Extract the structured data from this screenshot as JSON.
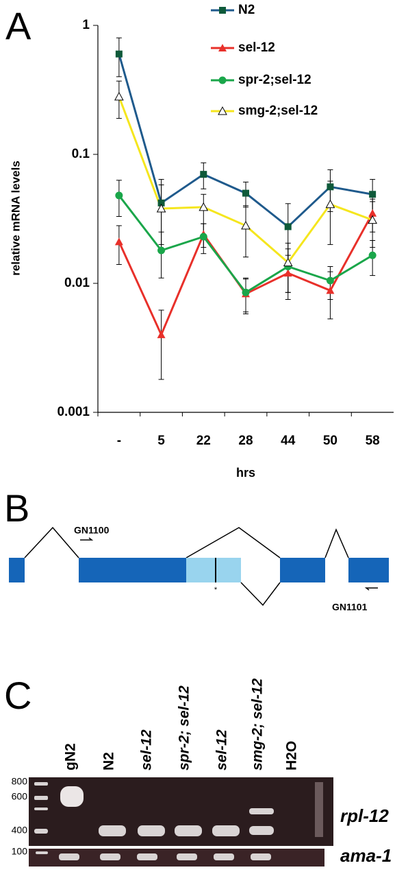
{
  "panel_a_label": "A",
  "chart_data": {
    "type": "line",
    "y_label": "relative mRNA levels",
    "x_label": "hrs",
    "categories": [
      "-",
      "5",
      "22",
      "28",
      "44",
      "50",
      "58"
    ],
    "log_scale": true,
    "ylim": [
      0.001,
      1
    ],
    "yticks": [
      1,
      0.1,
      0.01,
      0.001
    ],
    "series": [
      {
        "name": "N2",
        "color": "#1f5a8c",
        "marker": "square",
        "marker_color": "#0f5a3a",
        "values": [
          0.6,
          0.042,
          0.07,
          0.05,
          0.0275,
          0.056,
          0.049
        ],
        "errors": [
          0.2,
          0.022,
          0.016,
          0.011,
          0.014,
          0.02,
          0.015
        ]
      },
      {
        "name": "sel-12",
        "color": "#e8302a",
        "marker": "triangle",
        "marker_color": "#e8302a",
        "values": [
          0.021,
          0.004,
          0.024,
          0.0083,
          0.012,
          0.0088,
          0.035
        ],
        "errors": [
          0.007,
          0.0022,
          0.005,
          0.0025,
          0.0045,
          0.0035,
          0.01
        ]
      },
      {
        "name": "spr-2;sel-12",
        "color": "#1aa64a",
        "marker": "circle",
        "marker_color": "#1aa64a",
        "values": [
          0.048,
          0.018,
          0.023,
          0.0085,
          0.0135,
          0.0105,
          0.0165
        ],
        "errors": [
          0.015,
          0.007,
          0.006,
          0.0025,
          0.005,
          0.003,
          0.005
        ]
      },
      {
        "name": "smg-2;sel-12",
        "color": "#f5e61e",
        "marker": "triangle-open",
        "marker_color": "#000000",
        "values": [
          0.28,
          0.038,
          0.039,
          0.028,
          0.0145,
          0.041,
          0.031
        ],
        "errors": [
          0.09,
          0.02,
          0.01,
          0.012,
          0.006,
          0.021,
          0.012
        ]
      }
    ]
  },
  "panel_b": {
    "label": "B",
    "primer_left": "GN1100",
    "primer_right": "GN1101",
    "mark": "*"
  },
  "panel_c": {
    "label": "C",
    "lanes": [
      "gN2",
      "N2",
      "sel-12",
      "spr-2; sel-12",
      "sel-12",
      "smg-2; sel-12",
      "H2O"
    ],
    "size_markers": [
      "800",
      "600",
      "400",
      "100"
    ],
    "genes": [
      "rpl-12",
      "ama-1"
    ]
  }
}
